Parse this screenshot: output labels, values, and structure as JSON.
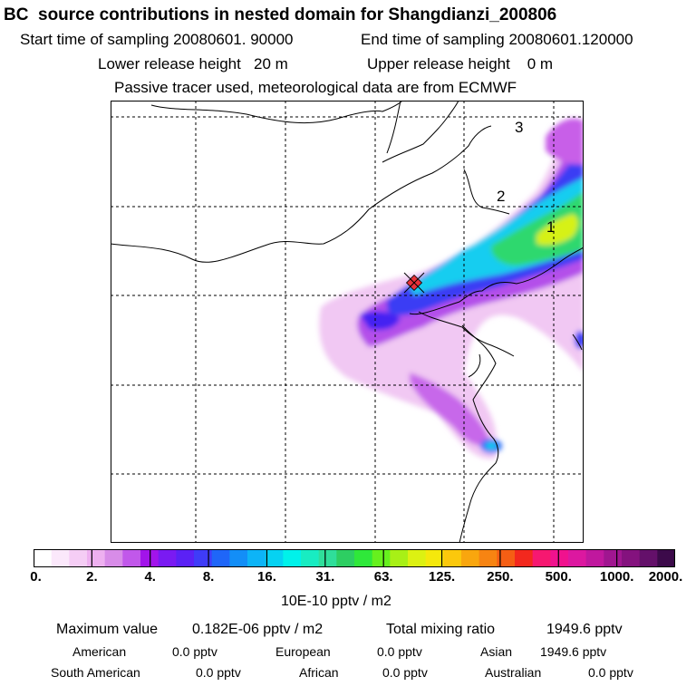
{
  "header": {
    "title": "BC  source contributions in nested domain for Shangdianzi_200806",
    "start_sampling": "Start time of sampling 20080601. 90000",
    "end_sampling": "End time of sampling 20080601.120000",
    "lower_release": "Lower release height   20 m",
    "upper_release": "Upper release height    0 m",
    "tracer_note": "Passive tracer used, meteorological data are from ECMWF"
  },
  "map": {
    "labels": [
      "3",
      "2",
      "1"
    ],
    "receptor_color": "#e8313a"
  },
  "colorbar": {
    "colors": [
      "#ffffff",
      "#fbe8fb",
      "#f5cdf5",
      "#eeb0f0",
      "#d88ce8",
      "#c158ea",
      "#a214ea",
      "#7a1af2",
      "#5b21f5",
      "#3f3cf8",
      "#1f66f8",
      "#138ef7",
      "#0db4f7",
      "#06d2f2",
      "#00f2ea",
      "#18ecc2",
      "#2fde9a",
      "#2dce62",
      "#2fe83a",
      "#66f01e",
      "#a8f016",
      "#dcf112",
      "#f5e80c",
      "#fbc80c",
      "#f9a60e",
      "#f78412",
      "#f55e14",
      "#f3281e",
      "#f61870",
      "#f0128e",
      "#dc18a0",
      "#c0189e",
      "#a01690",
      "#84127e",
      "#64106a",
      "#3c0a4a"
    ],
    "tick_labels": [
      "0.",
      "2.",
      "4.",
      "8.",
      "16.",
      "31.",
      "63.",
      "125.",
      "250.",
      "500.",
      "1000.",
      "2000."
    ],
    "units": "10E-10 pptv / m2"
  },
  "stats": {
    "max_label": "Maximum value",
    "max_value": "0.182E-06 pptv / m2",
    "total_label": "Total mixing ratio",
    "total_value": "1949.6 pptv",
    "regions": [
      {
        "name": "American",
        "value": "0.0 pptv"
      },
      {
        "name": "European",
        "value": "0.0 pptv"
      },
      {
        "name": "Asian",
        "value": "1949.6 pptv"
      },
      {
        "name": "South American",
        "value": "0.0 pptv"
      },
      {
        "name": "African",
        "value": "0.0 pptv"
      },
      {
        "name": "Australian",
        "value": "0.0 pptv"
      }
    ]
  }
}
